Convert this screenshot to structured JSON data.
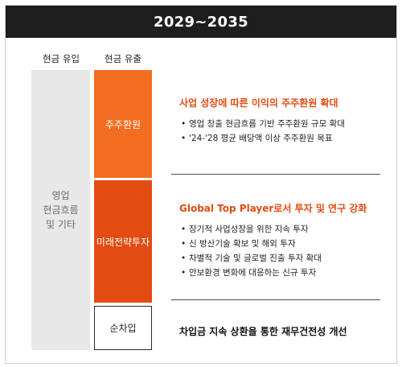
{
  "header": {
    "title": "2029~2035"
  },
  "columns": {
    "inflow_label": "현금 유입",
    "outflow_label": "현금 유출"
  },
  "inflow": {
    "lines": [
      "영업",
      "현금흐름",
      "및 기타"
    ]
  },
  "outflow": {
    "shareholder_return": "주주환원",
    "future_strategy_investment": "미래전략투자",
    "net_borrowing": "순차입"
  },
  "sections": {
    "shareholder": {
      "title": "사업 성장에 따른 이익의 주주환원 확대",
      "bullets": [
        "영업 창출 현금흐름 기반 주주환원 규모 확대",
        "'24-'28 평균 배당액 이상 주주환원 목표"
      ]
    },
    "investment": {
      "title": "Global Top Player로서 투자 및 연구 강화",
      "bullets": [
        "장기적 사업성장을 위한 지속 투자",
        "신 방산기술 확보 및 해외 투자",
        "차별적 기술 및 글로벌 진출 투자 확대",
        "안보환경 변화에 대응하는 신규 투자"
      ]
    },
    "debt": {
      "text": "차입금 지속 상환을 통한 재무건전성 개선"
    }
  },
  "colors": {
    "header_bg": "#1e1e1e",
    "inflow_bg": "#e8e8e8",
    "shareholder_orange": "#f26d21",
    "investment_orange": "#e24b12",
    "divider": "#3f5266"
  }
}
